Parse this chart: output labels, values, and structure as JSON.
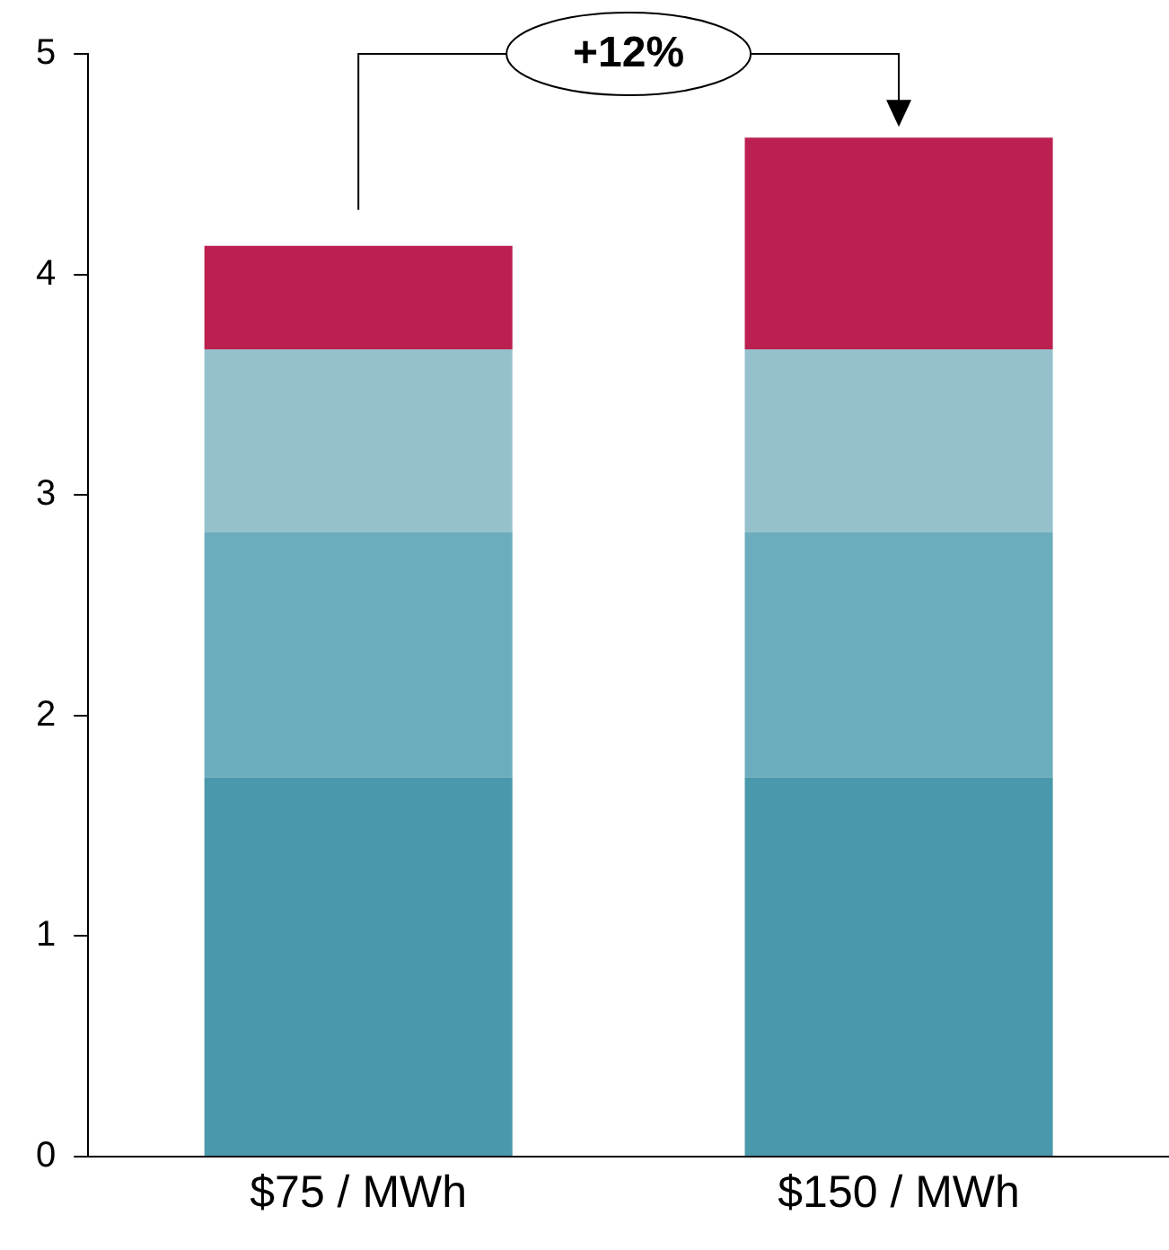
{
  "chart_data": {
    "type": "bar",
    "stacked": true,
    "categories": [
      "$75 / MWh",
      "$150 / MWh"
    ],
    "series": [
      {
        "color": "#4a98ab",
        "values": [
          1.72,
          1.72
        ]
      },
      {
        "color": "#6badbd",
        "values": [
          1.11,
          1.11
        ]
      },
      {
        "color": "#95c1cd",
        "values": [
          0.83,
          0.83
        ]
      },
      {
        "color": "#bc2050",
        "values": [
          0.47,
          0.96
        ]
      }
    ],
    "ylim": [
      0,
      5
    ],
    "yticks": [
      0,
      1,
      2,
      3,
      4,
      5
    ],
    "grid": false,
    "legend": false,
    "annotations": [
      "+12%"
    ]
  }
}
